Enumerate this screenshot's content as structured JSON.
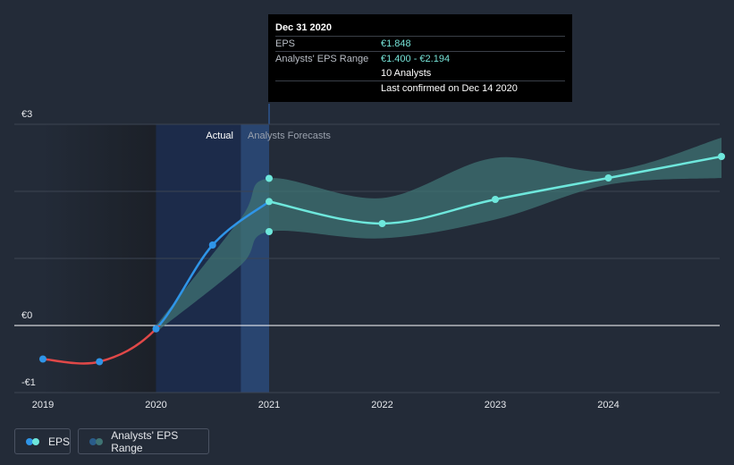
{
  "chart_data": {
    "type": "line",
    "x_ticks": [
      "2019",
      "2020",
      "2021",
      "2022",
      "2023",
      "2024"
    ],
    "y_ticks": [
      "€3",
      "€0",
      "-€1"
    ],
    "ylim": [
      -1,
      3
    ],
    "region_labels": {
      "actual": "Actual",
      "forecast": "Analysts Forecasts"
    },
    "series": [
      {
        "name": "EPS",
        "type": "actual",
        "points": [
          {
            "x": 2019.0,
            "y": -0.5
          },
          {
            "x": 2019.5,
            "y": -0.54
          },
          {
            "x": 2020.0,
            "y": -0.05
          },
          {
            "x": 2020.5,
            "y": 1.2
          },
          {
            "x": 2021.0,
            "y": 1.848
          }
        ]
      },
      {
        "name": "EPS",
        "type": "forecast",
        "points": [
          {
            "x": 2021.0,
            "y": 1.848
          },
          {
            "x": 2022.0,
            "y": 1.52
          },
          {
            "x": 2023.0,
            "y": 1.88
          },
          {
            "x": 2024.0,
            "y": 2.2
          },
          {
            "x": 2025.0,
            "y": 2.52
          }
        ]
      },
      {
        "name": "Analysts' EPS Range",
        "type": "range",
        "points": [
          {
            "x": 2020.0,
            "low": -0.1,
            "high": 0.0
          },
          {
            "x": 2020.75,
            "low": 0.9,
            "high": 1.6
          },
          {
            "x": 2021.0,
            "low": 1.4,
            "high": 2.194
          },
          {
            "x": 2022.0,
            "low": 1.3,
            "high": 1.9
          },
          {
            "x": 2023.0,
            "low": 1.58,
            "high": 2.5
          },
          {
            "x": 2024.0,
            "low": 2.1,
            "high": 2.3
          },
          {
            "x": 2025.0,
            "low": 2.2,
            "high": 2.8
          }
        ]
      }
    ],
    "highlight_points": [
      {
        "x": 2021.0,
        "y": 2.194
      },
      {
        "x": 2021.0,
        "y": 1.4
      }
    ]
  },
  "tooltip": {
    "date": "Dec 31 2020",
    "eps_label": "EPS",
    "eps_value": "€1.848",
    "range_label": "Analysts' EPS Range",
    "range_value": "€1.400 - €2.194",
    "analysts": "10 Analysts",
    "confirmed": "Last confirmed on Dec 14 2020"
  },
  "legend": {
    "eps": "EPS",
    "range": "Analysts' EPS Range"
  },
  "colors": {
    "background": "#232b38",
    "actual_negative": "#e04848",
    "actual_positive": "#2f95e8",
    "forecast": "#6ee7dc",
    "range_fill": "#3f7373",
    "actual_shade": "#1c2b4a",
    "highlight_band": "#2a4a7a"
  }
}
